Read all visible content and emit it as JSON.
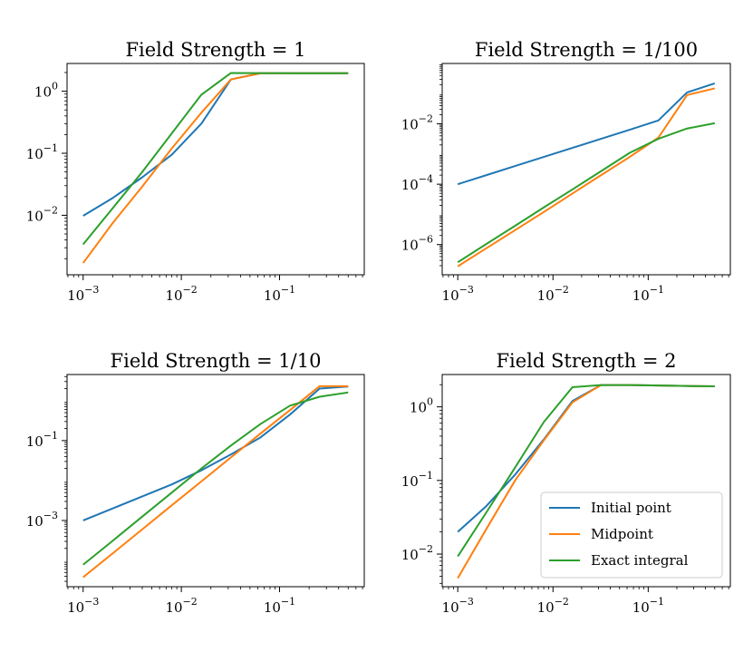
{
  "colors": {
    "initial": "#1f77b4",
    "midpoint": "#ff7f0e",
    "exact": "#2ca02c"
  },
  "legend": {
    "location": "lower-right of bottom-right panel",
    "entries": [
      "Initial point",
      "Midpoint",
      "Exact integral"
    ]
  },
  "chart_data": [
    {
      "type": "line",
      "title": "Field Strength = 1",
      "xscale": "log",
      "yscale": "log",
      "xlim": [
        0.000686,
        0.729
      ],
      "ylim": [
        0.0011,
        2.8
      ],
      "xticks": [
        {
          "v": 0.001,
          "b": "10",
          "e": "−3"
        },
        {
          "v": 0.01,
          "b": "10",
          "e": "−2"
        },
        {
          "v": 0.1,
          "b": "10",
          "e": "−1"
        }
      ],
      "yticks": [
        {
          "v": 0.01,
          "b": "10",
          "e": "−2"
        },
        {
          "v": 0.1,
          "b": "10",
          "e": "−1"
        },
        {
          "v": 1,
          "b": "10",
          "e": "0"
        }
      ],
      "x": [
        0.001,
        0.002,
        0.004,
        0.008,
        0.016,
        0.032,
        0.064,
        0.128,
        0.256,
        0.5
      ],
      "series": [
        {
          "name": "Initial point",
          "key": "initial",
          "values": [
            0.0098,
            0.019,
            0.041,
            0.095,
            0.3,
            1.55,
            1.95,
            1.95,
            1.95,
            1.95
          ]
        },
        {
          "name": "Midpoint",
          "key": "midpoint",
          "values": [
            0.0017,
            0.0075,
            0.029,
            0.12,
            0.45,
            1.55,
            1.95,
            1.95,
            1.95,
            1.95
          ]
        },
        {
          "name": "Exact integral",
          "key": "exact",
          "values": [
            0.0034,
            0.013,
            0.05,
            0.21,
            0.88,
            1.97,
            1.96,
            1.95,
            1.95,
            1.95
          ]
        }
      ]
    },
    {
      "type": "line",
      "title": "Field Strength = 1/100",
      "xscale": "log",
      "yscale": "log",
      "xlim": [
        0.000686,
        0.729
      ],
      "ylim": [
        1e-07,
        1.0
      ],
      "xticks": [
        {
          "v": 0.001,
          "b": "10",
          "e": "−3"
        },
        {
          "v": 0.01,
          "b": "10",
          "e": "−2"
        },
        {
          "v": 0.1,
          "b": "10",
          "e": "−1"
        }
      ],
      "yticks": [
        {
          "v": 1e-06,
          "b": "10",
          "e": "−6"
        },
        {
          "v": 0.0001,
          "b": "10",
          "e": "−4"
        },
        {
          "v": 0.01,
          "b": "10",
          "e": "−2"
        }
      ],
      "x": [
        0.001,
        0.002,
        0.004,
        0.008,
        0.016,
        0.032,
        0.064,
        0.128,
        0.256,
        0.5
      ],
      "series": [
        {
          "name": "Initial point",
          "key": "initial",
          "values": [
            0.0001,
            0.0002,
            0.0004,
            0.0008,
            0.0016,
            0.0032,
            0.0064,
            0.013,
            0.11,
            0.22
          ]
        },
        {
          "name": "Midpoint",
          "key": "midpoint",
          "values": [
            1.9e-07,
            7.6e-07,
            3e-06,
            1.2e-05,
            4.9e-05,
            0.0002,
            0.0008,
            0.0035,
            0.09,
            0.15
          ]
        },
        {
          "name": "Exact integral",
          "key": "exact",
          "values": [
            2.6e-07,
            1.05e-06,
            4.2e-06,
            1.7e-05,
            6.7e-05,
            0.00027,
            0.0011,
            0.0032,
            0.007,
            0.0105
          ]
        }
      ]
    },
    {
      "type": "line",
      "title": "Field Strength = 1/10",
      "xscale": "log",
      "yscale": "log",
      "xlim": [
        0.000686,
        0.729
      ],
      "ylim": [
        2.2e-05,
        4.5
      ],
      "xticks": [
        {
          "v": 0.001,
          "b": "10",
          "e": "−3"
        },
        {
          "v": 0.01,
          "b": "10",
          "e": "−2"
        },
        {
          "v": 0.1,
          "b": "10",
          "e": "−1"
        }
      ],
      "yticks": [
        {
          "v": 0.001,
          "b": "10",
          "e": "−3"
        },
        {
          "v": 0.1,
          "b": "10",
          "e": "−1"
        }
      ],
      "x": [
        0.001,
        0.002,
        0.004,
        0.008,
        0.016,
        0.032,
        0.064,
        0.128,
        0.256,
        0.5
      ],
      "series": [
        {
          "name": "Initial point",
          "key": "initial",
          "values": [
            0.001,
            0.002,
            0.004,
            0.008,
            0.018,
            0.045,
            0.12,
            0.45,
            2.0,
            2.25
          ]
        },
        {
          "name": "Midpoint",
          "key": "midpoint",
          "values": [
            3.8e-05,
            0.00015,
            0.0006,
            0.0024,
            0.0095,
            0.038,
            0.15,
            0.58,
            2.3,
            2.3
          ]
        },
        {
          "name": "Exact integral",
          "key": "exact",
          "values": [
            7.8e-05,
            0.00031,
            0.00125,
            0.005,
            0.02,
            0.075,
            0.26,
            0.75,
            1.25,
            1.6
          ]
        }
      ]
    },
    {
      "type": "line",
      "title": "Field Strength = 2",
      "xscale": "log",
      "yscale": "log",
      "xlim": [
        0.000686,
        0.729
      ],
      "ylim": [
        0.0036,
        2.75
      ],
      "xticks": [
        {
          "v": 0.001,
          "b": "10",
          "e": "−3"
        },
        {
          "v": 0.01,
          "b": "10",
          "e": "−2"
        },
        {
          "v": 0.1,
          "b": "10",
          "e": "−1"
        }
      ],
      "yticks": [
        {
          "v": 0.01,
          "b": "10",
          "e": "−2"
        },
        {
          "v": 0.1,
          "b": "10",
          "e": "−1"
        },
        {
          "v": 1,
          "b": "10",
          "e": "0"
        }
      ],
      "x": [
        0.001,
        0.002,
        0.004,
        0.008,
        0.016,
        0.032,
        0.064,
        0.128,
        0.256,
        0.5
      ],
      "series": [
        {
          "name": "Initial point",
          "key": "initial",
          "values": [
            0.02,
            0.045,
            0.12,
            0.36,
            1.2,
            1.98,
            1.98,
            1.95,
            1.92,
            1.9
          ]
        },
        {
          "name": "Midpoint",
          "key": "midpoint",
          "values": [
            0.0047,
            0.022,
            0.1,
            0.35,
            1.15,
            1.98,
            1.98,
            1.95,
            1.92,
            1.9
          ]
        },
        {
          "name": "Exact integral",
          "key": "exact",
          "values": [
            0.0093,
            0.037,
            0.15,
            0.62,
            1.85,
            1.98,
            1.98,
            1.95,
            1.92,
            1.9
          ]
        }
      ]
    }
  ]
}
